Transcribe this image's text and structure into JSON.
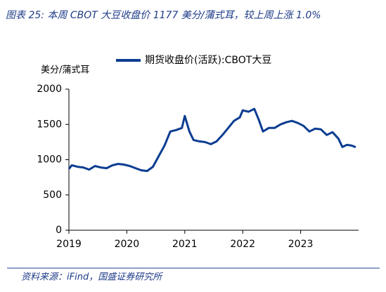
{
  "chart_data": {
    "type": "line",
    "title": "图表 25:  本周 CBOT 大豆收盘价 1177 美分/蒲式耳，较上周上涨 1.0%",
    "y_label": "美分/蒲式耳",
    "source": "资料来源：iFind，国盛证券研究所",
    "x": [
      2019.0,
      2019.05,
      2019.15,
      2019.25,
      2019.35,
      2019.45,
      2019.55,
      2019.65,
      2019.75,
      2019.85,
      2019.95,
      2020.05,
      2020.15,
      2020.25,
      2020.35,
      2020.45,
      2020.55,
      2020.65,
      2020.75,
      2020.85,
      2020.95,
      2021.0,
      2021.08,
      2021.15,
      2021.25,
      2021.35,
      2021.45,
      2021.55,
      2021.65,
      2021.75,
      2021.85,
      2021.95,
      2022.0,
      2022.1,
      2022.2,
      2022.28,
      2022.35,
      2022.45,
      2022.55,
      2022.65,
      2022.75,
      2022.85,
      2022.95,
      2023.05,
      2023.15,
      2023.25,
      2023.35,
      2023.45,
      2023.55,
      2023.65,
      2023.72,
      2023.8,
      2023.88,
      2023.95
    ],
    "series": [
      {
        "name": "期货收盘价(活跃):CBOT大豆",
        "color": "#0b3d91",
        "values": [
          870,
          920,
          900,
          890,
          860,
          910,
          890,
          880,
          920,
          940,
          930,
          910,
          880,
          850,
          840,
          900,
          1050,
          1200,
          1400,
          1420,
          1450,
          1620,
          1400,
          1280,
          1260,
          1250,
          1220,
          1260,
          1350,
          1450,
          1550,
          1600,
          1700,
          1680,
          1720,
          1560,
          1400,
          1450,
          1450,
          1500,
          1530,
          1550,
          1520,
          1480,
          1400,
          1440,
          1430,
          1350,
          1390,
          1300,
          1180,
          1210,
          1200,
          1177
        ]
      }
    ],
    "xlim": [
      2019,
      2024
    ],
    "xticks": [
      2019,
      2020,
      2021,
      2022,
      2023
    ],
    "ylim": [
      0,
      2000
    ],
    "yticks": [
      0,
      500,
      1000,
      1500,
      2000
    ]
  }
}
